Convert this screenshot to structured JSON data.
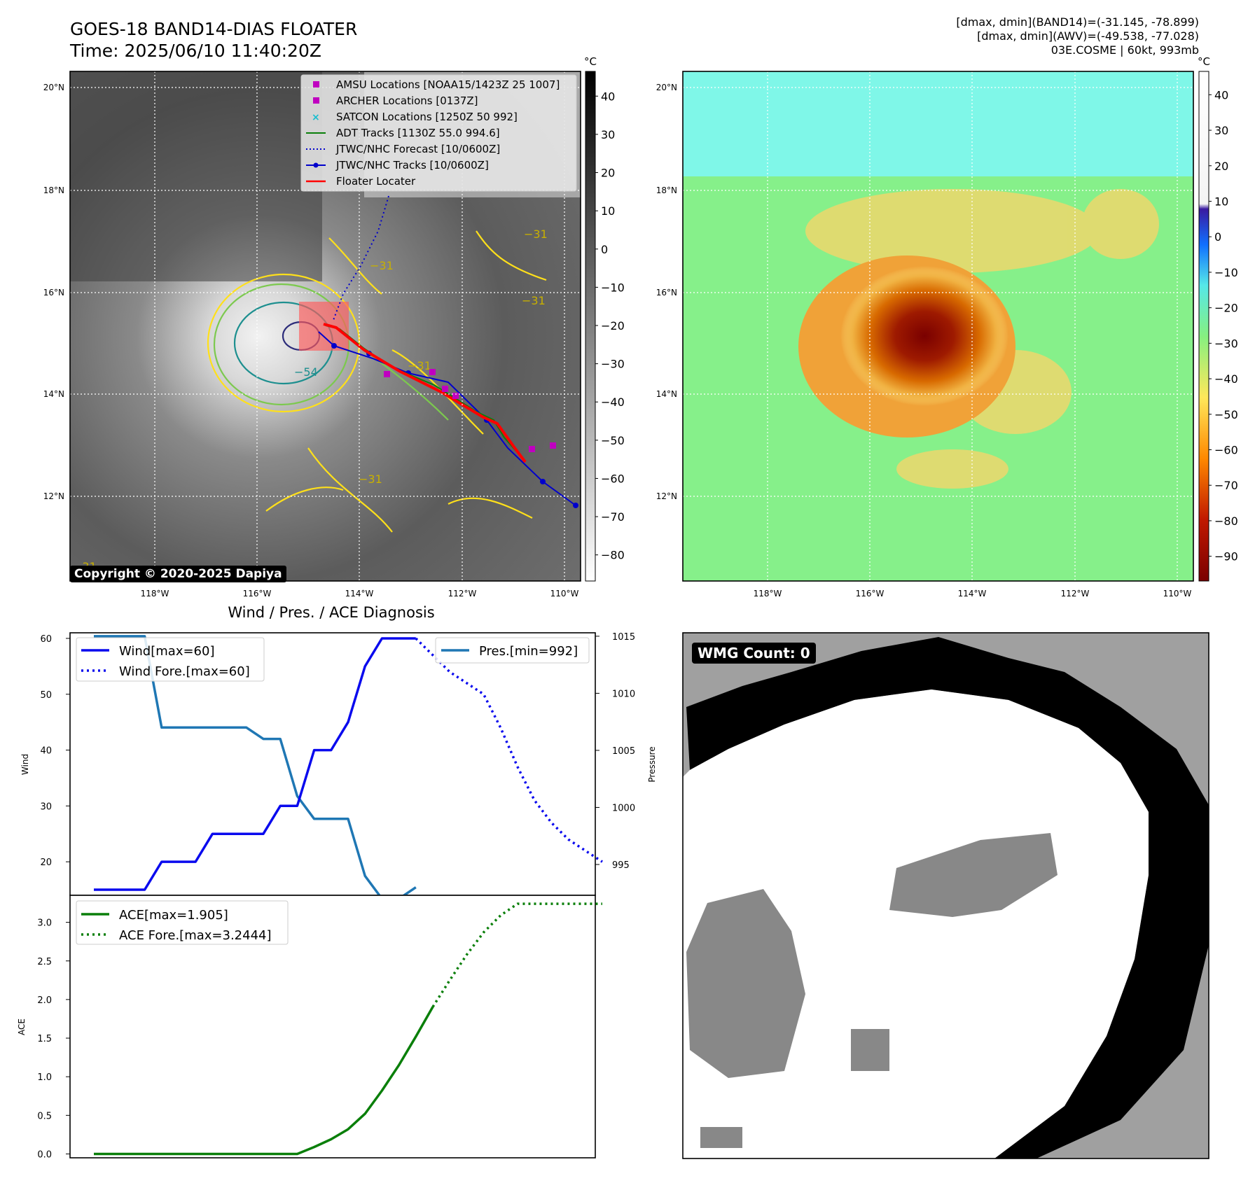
{
  "header": {
    "title_line1": "GOES-18 BAND14-DIAS FLOATER",
    "title_line2": "Time: 2025/06/10 11:40:20Z",
    "info_line1": "[dmax, dmin](BAND14)=(-31.145, -78.899)",
    "info_line2": "[dmax, dmin](AWV)=(-49.538, -77.028)",
    "info_line3": "03E.COSME | 60kt, 993mb"
  },
  "credit": "Copyright © 2020-2025 Dapiya",
  "wmg_label": "WMG Count: 0",
  "colors": {
    "wind": "#0a0aee",
    "pressure": "#1f77b4",
    "ace": "#0a7f0a",
    "track_red": "#ff0000",
    "contour_yellow": "#ffe01a",
    "contour_green": "#7cc94e",
    "contour_teal": "#1d8f8f",
    "marker_magenta": "#c000c0"
  },
  "map": {
    "lat_ticks": [
      "20°N",
      "18°N",
      "16°N",
      "14°N",
      "12°N"
    ],
    "lon_ticks": [
      "118°W",
      "116°W",
      "114°W",
      "112°W",
      "110°W"
    ],
    "gray_cbar_unit": "°C",
    "gray_cbar_ticks": [
      "40",
      "30",
      "20",
      "10",
      "0",
      "−10",
      "−20",
      "−30",
      "−40",
      "−50",
      "−60",
      "−70",
      "−80"
    ],
    "color_cbar_unit": "°C",
    "color_cbar_ticks": [
      "40",
      "30",
      "20",
      "10",
      "0",
      "−10",
      "−20",
      "−30",
      "−40",
      "−50",
      "−60",
      "−70",
      "−80",
      "−90"
    ],
    "contour_labels": [
      "−31",
      "−31",
      "−31",
      "−31",
      "−54",
      "−54",
      "−31",
      "−31",
      "−31",
      "−31"
    ],
    "legend": [
      {
        "label": "AMSU Locations [NOAA15/1423Z 25 1007]",
        "kind": "square",
        "color": "#c000c0"
      },
      {
        "label": "ARCHER Locations [0137Z]",
        "kind": "square",
        "color": "#c000c0"
      },
      {
        "label": "SATCON Locations [1250Z 50 992]",
        "kind": "x",
        "color": "#17becf"
      },
      {
        "label": "ADT Tracks [1130Z 55.0 994.6]",
        "kind": "line",
        "color": "#0a7f0a"
      },
      {
        "label": "JTWC/NHC Forecast [10/0600Z]",
        "kind": "dotted",
        "color": "#0000cc"
      },
      {
        "label": "JTWC/NHC Tracks [10/0600Z]",
        "kind": "line-marker",
        "color": "#0000cc"
      },
      {
        "label": "Floater Locater",
        "kind": "line",
        "color": "#ff0000"
      }
    ]
  },
  "chart_data": [
    {
      "type": "line",
      "title": "Wind / Pres. / ACE Diagnosis",
      "ylabel": "Wind",
      "ylim": [
        14,
        61
      ],
      "yticks": [
        20,
        30,
        40,
        50,
        60
      ],
      "series": [
        {
          "name": "Wind[max=60]",
          "style": "solid",
          "values": [
            15,
            15,
            15,
            15,
            20,
            20,
            20,
            25,
            25,
            25,
            25,
            30,
            30,
            40,
            40,
            45,
            55,
            60,
            60,
            60
          ]
        },
        {
          "name": "Wind Fore.[max=60]",
          "style": "dotted",
          "x_start": 19,
          "values": [
            60,
            57,
            54,
            52,
            50,
            44,
            37,
            31,
            27,
            24,
            22,
            20
          ]
        }
      ],
      "y2label": "Pressure",
      "y2lim": [
        992.3,
        1015.3
      ],
      "y2ticks": [
        995,
        1000,
        1005,
        1010,
        1015
      ],
      "series2": [
        {
          "name": "Pres.[min=992]",
          "style": "solid",
          "values": [
            1015,
            1015,
            1015,
            1015,
            1007,
            1007,
            1007,
            1007,
            1007,
            1007,
            1006,
            1006,
            1001,
            999,
            999,
            999,
            994,
            992,
            992,
            993
          ]
        }
      ]
    },
    {
      "type": "line",
      "ylabel": "ACE",
      "ylim": [
        -0.05,
        3.35
      ],
      "yticks": [
        0.0,
        0.5,
        1.0,
        1.5,
        2.0,
        2.5,
        3.0
      ],
      "ytick_labels": [
        "0.0",
        "0.5",
        "1.0",
        "1.5",
        "2.0",
        "2.5",
        "3.0"
      ],
      "series": [
        {
          "name": "ACE[max=1.905]",
          "style": "solid",
          "values": [
            0,
            0,
            0,
            0,
            0,
            0,
            0,
            0,
            0,
            0,
            0,
            0,
            0,
            0.09,
            0.19,
            0.32,
            0.52,
            0.82,
            1.15,
            1.52,
            1.905
          ]
        },
        {
          "name": "ACE Fore.[max=3.2444]",
          "style": "dotted",
          "x_start": 20,
          "values": [
            1.905,
            2.25,
            2.58,
            2.87,
            3.09,
            3.24,
            3.24,
            3.24,
            3.24,
            3.24,
            3.24
          ]
        }
      ]
    }
  ]
}
